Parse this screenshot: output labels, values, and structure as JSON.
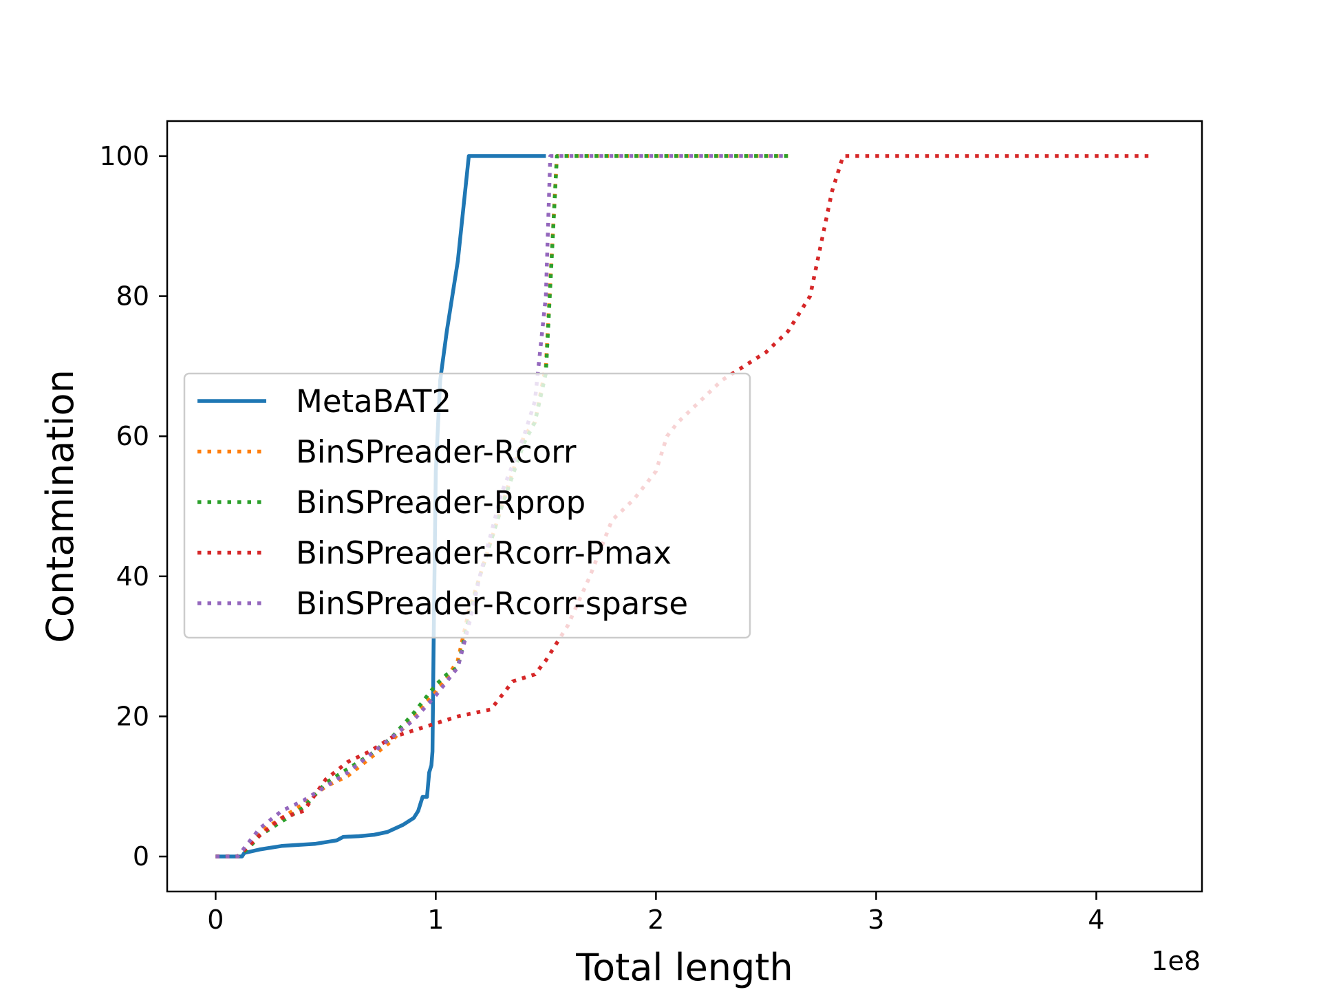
{
  "chart_data": {
    "type": "line",
    "title": "",
    "xlabel": "Total length",
    "ylabel": "Contamination",
    "x_multiplier_label": "1e8",
    "xlim": [
      -0.22,
      4.48
    ],
    "ylim": [
      -5,
      105
    ],
    "xticks": [
      0,
      1,
      2,
      3,
      4
    ],
    "yticks": [
      0,
      20,
      40,
      60,
      80,
      100
    ],
    "x_unit_note": "x values in units of 1e8",
    "grid": false,
    "legend_position": "center-left",
    "series": [
      {
        "name": "MetaBAT2",
        "color": "#1f77b4",
        "style": "solid",
        "x": [
          0.0,
          0.12,
          0.13,
          0.2,
          0.3,
          0.45,
          0.55,
          0.58,
          0.65,
          0.72,
          0.78,
          0.85,
          0.9,
          0.92,
          0.94,
          0.96,
          0.97,
          0.98,
          0.985,
          0.99,
          1.0,
          1.02,
          1.05,
          1.1,
          1.15,
          1.2,
          1.3,
          1.5
        ],
        "y": [
          0,
          0,
          0.5,
          1.0,
          1.5,
          1.8,
          2.3,
          2.8,
          2.9,
          3.1,
          3.5,
          4.5,
          5.5,
          6.5,
          8.5,
          8.5,
          12,
          13,
          15,
          30,
          55,
          68,
          75,
          85,
          100,
          100,
          100,
          100
        ]
      },
      {
        "name": "BinSPreader-Rcorr",
        "color": "#ff7f0e",
        "style": "dotted",
        "x": [
          0.0,
          0.1,
          0.15,
          0.2,
          0.3,
          0.4,
          0.5,
          0.6,
          0.7,
          0.8,
          0.9,
          1.0,
          1.05,
          1.1,
          1.15,
          1.2,
          1.3,
          1.4,
          1.45,
          1.5,
          1.55,
          1.6,
          2.0,
          2.6
        ],
        "y": [
          0,
          0,
          1.5,
          3.5,
          5.5,
          7.5,
          10,
          11.5,
          14,
          16.5,
          20,
          23.5,
          25.5,
          28,
          35,
          40,
          50,
          60,
          62,
          70,
          100,
          100,
          100,
          100
        ]
      },
      {
        "name": "BinSPreader-Rprop",
        "color": "#2ca02c",
        "style": "dotted",
        "x": [
          0.0,
          0.1,
          0.15,
          0.2,
          0.3,
          0.4,
          0.5,
          0.6,
          0.7,
          0.8,
          0.9,
          1.0,
          1.05,
          1.1,
          1.15,
          1.2,
          1.3,
          1.4,
          1.45,
          1.5,
          1.55,
          1.6,
          2.0,
          2.6
        ],
        "y": [
          0,
          0,
          1.2,
          3.0,
          5.0,
          7.0,
          10.5,
          12.5,
          14.5,
          17,
          20.5,
          24.5,
          26,
          27,
          34,
          40,
          50,
          59,
          62,
          69,
          100,
          100,
          100,
          100
        ]
      },
      {
        "name": "BinSPreader-Rcorr-Pmax",
        "color": "#d62728",
        "style": "dotted",
        "x": [
          0.0,
          0.1,
          0.15,
          0.2,
          0.3,
          0.4,
          0.5,
          0.6,
          0.7,
          0.8,
          0.9,
          1.0,
          1.1,
          1.25,
          1.3,
          1.35,
          1.45,
          1.5,
          1.6,
          1.7,
          1.8,
          1.9,
          2.0,
          2.05,
          2.1,
          2.2,
          2.3,
          2.4,
          2.5,
          2.6,
          2.7,
          2.8,
          2.85,
          3.0,
          4.25
        ],
        "y": [
          0,
          0,
          1.5,
          3.0,
          5.5,
          6.5,
          11,
          13.5,
          15,
          17,
          18,
          19,
          20,
          21,
          23,
          25,
          26,
          28,
          33,
          40,
          48,
          51,
          55,
          60,
          62,
          65,
          68,
          70,
          72,
          75,
          80,
          95,
          100,
          100,
          100
        ]
      },
      {
        "name": "BinSPreader-Rcorr-sparse",
        "color": "#9467bd",
        "style": "dotted",
        "x": [
          0.0,
          0.1,
          0.15,
          0.2,
          0.3,
          0.4,
          0.5,
          0.6,
          0.7,
          0.8,
          0.9,
          1.0,
          1.1,
          1.15,
          1.2,
          1.3,
          1.4,
          1.45,
          1.5,
          1.52,
          1.55,
          1.6,
          2.0,
          2.6
        ],
        "y": [
          0,
          0,
          2.0,
          4.0,
          6.5,
          8.0,
          10,
          12,
          14.5,
          17,
          19.5,
          23,
          27,
          33,
          40,
          52,
          60,
          65,
          80,
          100,
          100,
          100,
          100,
          100
        ]
      }
    ]
  }
}
